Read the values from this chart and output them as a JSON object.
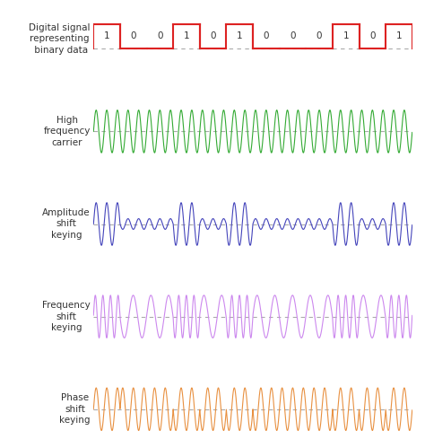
{
  "binary_data": [
    1,
    0,
    0,
    1,
    0,
    1,
    0,
    0,
    0,
    1,
    0,
    1
  ],
  "labels": [
    "Digital signal\nrepresenting\n binary data",
    "High\nfrequency\ncarrier",
    "Amplitude\nshift\nkeying",
    "Frequency\nshift\nkeying",
    "Phase\nshift\nkeying"
  ],
  "colors": {
    "digital": "#dd2222",
    "carrier": "#33aa33",
    "ask": "#4444bb",
    "fsk": "#cc88ee",
    "psk": "#e89040"
  },
  "dashed_color": "#aaaaaa",
  "background": "#ffffff",
  "carrier_freq": 2.5,
  "fsk_freq_high": 3.5,
  "fsk_freq_low": 1.5,
  "label_fontsize": 7.5,
  "bit_fontsize": 7.5
}
